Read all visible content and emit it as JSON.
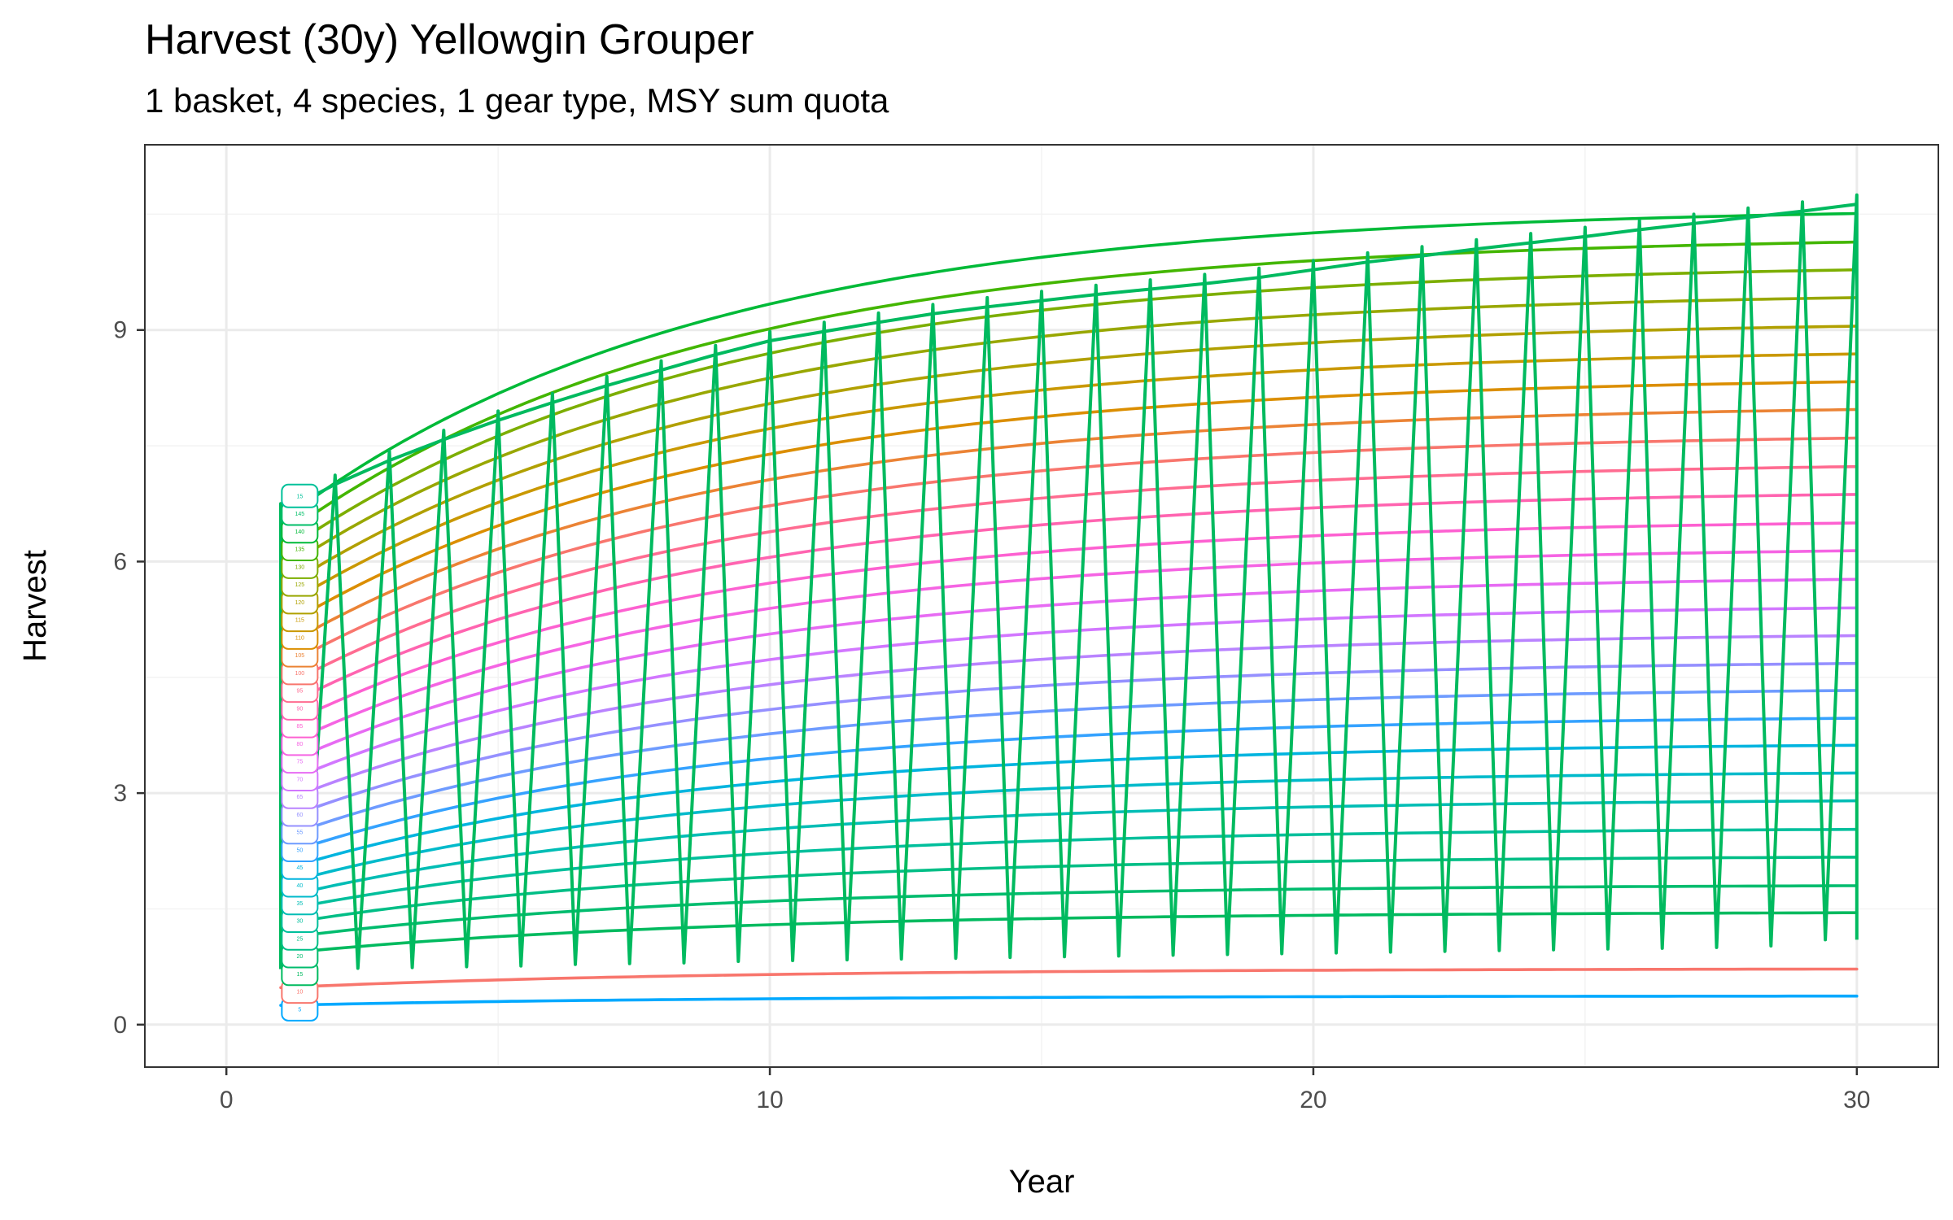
{
  "chart_data": {
    "type": "line",
    "title": "Harvest (30y) Yellowgin Grouper",
    "subtitle": "1 basket, 4 species, 1 gear type, MSY sum quota",
    "xlabel": "Year",
    "ylabel": "Harvest",
    "xlim": [
      -1.5,
      31.5
    ],
    "ylim": [
      -0.55,
      11.4
    ],
    "x_ticks": [
      0,
      10,
      20,
      30
    ],
    "y_ticks": [
      0,
      3,
      6,
      9
    ],
    "grid": true,
    "legend": "none",
    "x": [
      1,
      2,
      3,
      4,
      5,
      6,
      7,
      8,
      9,
      10,
      11,
      12,
      13,
      14,
      15,
      16,
      17,
      18,
      19,
      20,
      21,
      22,
      23,
      24,
      25,
      26,
      27,
      28,
      29,
      30
    ],
    "series": [
      {
        "label": "5",
        "color": "#00A9FF",
        "start": 0.25,
        "end": 0.37
      },
      {
        "label": "10",
        "color": "#F8766D",
        "start": 0.48,
        "end": 0.72
      },
      {
        "label": "15",
        "color": "#00BA5F",
        "start": 0.92,
        "end": 1.45
      },
      {
        "label": "20",
        "color": "#00BC6E",
        "start": 1.12,
        "end": 1.8
      },
      {
        "label": "25",
        "color": "#00BE86",
        "start": 1.3,
        "end": 2.17
      },
      {
        "label": "30",
        "color": "#00BF9C",
        "start": 1.48,
        "end": 2.53
      },
      {
        "label": "35",
        "color": "#00BDB5",
        "start": 1.65,
        "end": 2.9
      },
      {
        "label": "40",
        "color": "#00BACB",
        "start": 1.82,
        "end": 3.26
      },
      {
        "label": "45",
        "color": "#00B4DF",
        "start": 2.0,
        "end": 3.62
      },
      {
        "label": "50",
        "color": "#35A2FF",
        "start": 2.2,
        "end": 3.97
      },
      {
        "label": "55",
        "color": "#6E9BFF",
        "start": 2.42,
        "end": 4.33
      },
      {
        "label": "60",
        "color": "#9590FF",
        "start": 2.65,
        "end": 4.68
      },
      {
        "label": "65",
        "color": "#B983FF",
        "start": 2.88,
        "end": 5.04
      },
      {
        "label": "70",
        "color": "#D277FF",
        "start": 3.12,
        "end": 5.4
      },
      {
        "label": "75",
        "color": "#E76BF3",
        "start": 3.36,
        "end": 5.77
      },
      {
        "label": "80",
        "color": "#F564E3",
        "start": 3.6,
        "end": 6.14
      },
      {
        "label": "85",
        "color": "#FD61D1",
        "start": 3.85,
        "end": 6.5
      },
      {
        "label": "90",
        "color": "#FF64B0",
        "start": 4.1,
        "end": 6.87
      },
      {
        "label": "95",
        "color": "#FF6C91",
        "start": 4.36,
        "end": 7.23
      },
      {
        "label": "100",
        "color": "#F8766D",
        "start": 4.62,
        "end": 7.6
      },
      {
        "label": "105",
        "color": "#EB8335",
        "start": 4.88,
        "end": 7.97
      },
      {
        "label": "110",
        "color": "#DB8E00",
        "start": 5.14,
        "end": 8.33
      },
      {
        "label": "115",
        "color": "#C99800",
        "start": 5.4,
        "end": 8.69
      },
      {
        "label": "120",
        "color": "#B1A000",
        "start": 5.64,
        "end": 9.05
      },
      {
        "label": "125",
        "color": "#98A700",
        "start": 5.88,
        "end": 9.42
      },
      {
        "label": "130",
        "color": "#7CAE00",
        "start": 6.1,
        "end": 9.78
      },
      {
        "label": "135",
        "color": "#43B600",
        "start": 6.32,
        "end": 10.14
      },
      {
        "label": "140",
        "color": "#00BA38",
        "start": 6.52,
        "end": 10.51
      },
      {
        "label": "145",
        "color": "#00BE67",
        "start": 6.72,
        "end": 10.51
      },
      {
        "label": "15",
        "color": "#00C19A",
        "start": 6.85,
        "end": 10.51
      }
    ],
    "trace": {
      "color": "#00BA5F",
      "description": "sawtooth across series",
      "tops": [
        6.75,
        7.12,
        7.43,
        7.7,
        7.95,
        8.18,
        8.4,
        8.6,
        8.8,
        8.98,
        9.1,
        9.22,
        9.33,
        9.42,
        9.5,
        9.58,
        9.65,
        9.72,
        9.8,
        9.9,
        10.0,
        10.08,
        10.17,
        10.25,
        10.33,
        10.42,
        10.5,
        10.58,
        10.66,
        10.75
      ],
      "bottoms": [
        0.72,
        0.72,
        0.73,
        0.74,
        0.75,
        0.76,
        0.78,
        0.79,
        0.8,
        0.82,
        0.83,
        0.84,
        0.85,
        0.86,
        0.87,
        0.88,
        0.89,
        0.9,
        0.91,
        0.92,
        0.93,
        0.94,
        0.95,
        0.96,
        0.97,
        0.98,
        0.99,
        1.0,
        1.02,
        1.1
      ]
    }
  }
}
